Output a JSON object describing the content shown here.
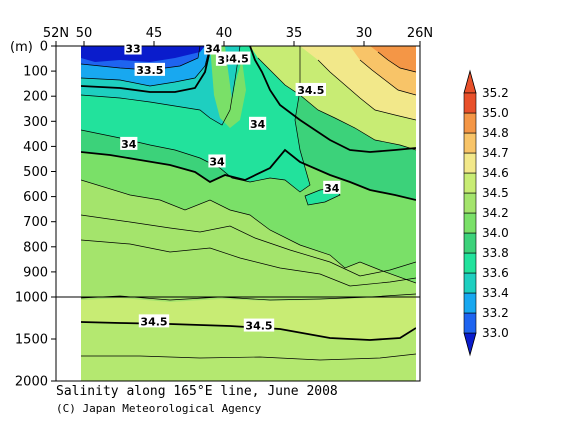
{
  "chart_data": {
    "type": "contour",
    "title": "Salinity along 165°E line, June 2008",
    "credit": "(C) Japan Meteorological Agency",
    "x_axis": {
      "range_deg": [
        52,
        26
      ],
      "ticks": [
        52,
        50,
        45,
        40,
        35,
        30,
        26
      ],
      "tick_labels": [
        "52N",
        "50",
        "45",
        "40",
        "35",
        "30",
        "26N"
      ]
    },
    "y_axis": {
      "unit_label": "(m)",
      "upper_range": [
        0,
        1000
      ],
      "lower_range": [
        1000,
        2000
      ],
      "ticks": [
        0,
        100,
        200,
        300,
        400,
        500,
        600,
        700,
        800,
        900,
        1000,
        1500,
        2000
      ],
      "tick_labels": [
        "0",
        "100",
        "200",
        "300",
        "400",
        "500",
        "600",
        "700",
        "800",
        "900",
        "1000",
        "1500",
        "2000"
      ]
    },
    "data_extent_lat": [
      50,
      27
    ],
    "colorbar": {
      "levels": [
        33.0,
        33.2,
        33.4,
        33.6,
        33.8,
        34.0,
        34.2,
        34.5,
        34.6,
        34.7,
        34.8,
        35.0,
        35.2
      ],
      "labels": [
        "33.0",
        "33.2",
        "33.4",
        "33.6",
        "33.8",
        "34.0",
        "34.2",
        "34.5",
        "34.6",
        "34.7",
        "34.8",
        "35.0",
        "35.2"
      ],
      "colors": [
        "#0a1ccc",
        "#1e64f0",
        "#18a8f0",
        "#1ecfc0",
        "#22e29c",
        "#3cd27a",
        "#7ae068",
        "#a4e46c",
        "#c8ec74",
        "#f2e88a",
        "#f8c468",
        "#f49646",
        "#e8502a"
      ]
    },
    "contour_labels": [
      {
        "text": "33",
        "lat": 46.5,
        "depth": 10
      },
      {
        "text": "34",
        "lat": 40.8,
        "depth": 10
      },
      {
        "text": "33.5",
        "lat": 45.3,
        "depth": 95
      },
      {
        "text": "34.5",
        "lat": 39.2,
        "depth": 50
      },
      {
        "text": "3",
        "lat": 40.2,
        "depth": 55
      },
      {
        "text": "34.5",
        "lat": 33.8,
        "depth": 175
      },
      {
        "text": "34",
        "lat": 37.6,
        "depth": 310
      },
      {
        "text": "34",
        "lat": 46.8,
        "depth": 390
      },
      {
        "text": "34",
        "lat": 40.5,
        "depth": 460
      },
      {
        "text": "34",
        "lat": 32.3,
        "depth": 565
      },
      {
        "text": "34.5",
        "lat": 45.0,
        "depth": 1290
      },
      {
        "text": "34.5",
        "lat": 37.5,
        "depth": 1340
      }
    ]
  }
}
